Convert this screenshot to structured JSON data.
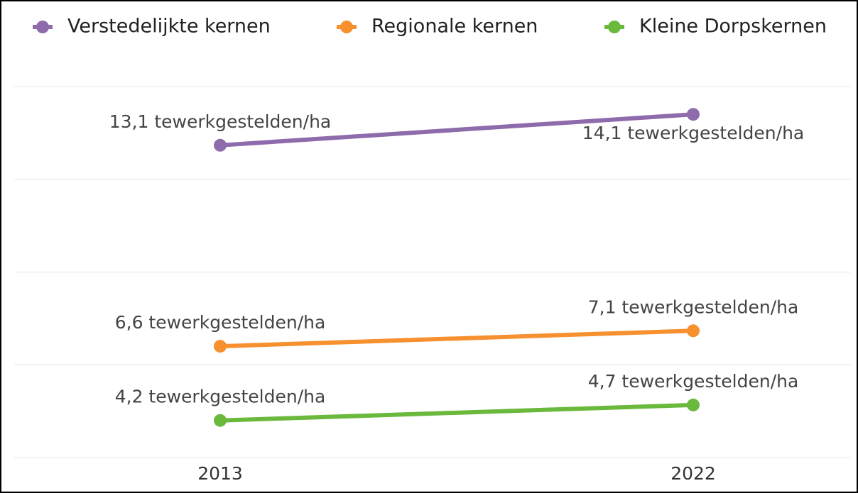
{
  "chart_data": {
    "type": "line",
    "categories": [
      "2013",
      "2022"
    ],
    "series": [
      {
        "name": "Verstedelijkte kernen",
        "color": "#8e6bab",
        "values": [
          13.1,
          14.1
        ],
        "value_labels": [
          "13,1 tewerkgestelden/ha",
          "14,1 tewerkgestelden/ha"
        ]
      },
      {
        "name": "Regionale kernen",
        "color": "#f7902e",
        "values": [
          6.6,
          7.1
        ],
        "value_labels": [
          "6,6 tewerkgestelden/ha",
          "7,1 tewerkgestelden/ha"
        ]
      },
      {
        "name": "Kleine Dorpskernen",
        "color": "#6ab93c",
        "values": [
          4.2,
          4.7
        ],
        "value_labels": [
          "4,2 tewerkgestelden/ha",
          "4,7 tewerkgestelden/ha"
        ]
      }
    ],
    "ylim": [
      3,
      15
    ],
    "yticks": [
      3,
      6,
      9,
      12,
      15
    ],
    "grid": true,
    "legend": "top"
  }
}
